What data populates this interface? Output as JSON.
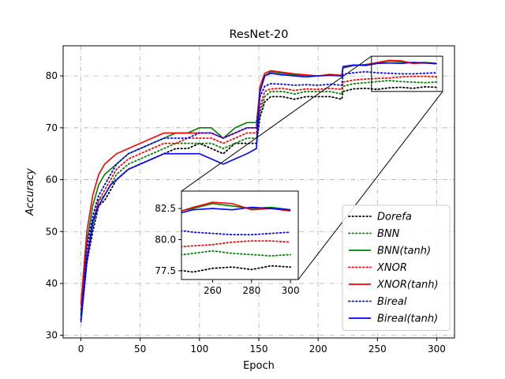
{
  "chart_data": {
    "type": "line",
    "title": "ResNet-20",
    "xlabel": "Epoch",
    "ylabel": "Accuracy",
    "xlim": [
      -15,
      315
    ],
    "ylim": [
      29.5,
      85.8
    ],
    "xticks": [
      0,
      50,
      100,
      150,
      200,
      250,
      300
    ],
    "yticks": [
      30,
      40,
      50,
      60,
      70,
      80
    ],
    "grid": true,
    "legend_position": "bottom-right",
    "series": [
      {
        "name": "Dorefa",
        "color": "#000000",
        "style": "dotted",
        "x": [
          0,
          5,
          10,
          15,
          20,
          25,
          30,
          40,
          50,
          60,
          70,
          80,
          90,
          100,
          110,
          120,
          130,
          140,
          148,
          151,
          155,
          160,
          170,
          180,
          190,
          200,
          210,
          220,
          221,
          230,
          240,
          250,
          260,
          270,
          280,
          290,
          300
        ],
        "y": [
          33,
          44,
          50,
          55,
          56,
          58,
          60,
          62,
          63,
          64,
          65,
          66,
          66,
          67,
          66,
          65,
          67,
          67,
          67,
          72,
          75,
          76,
          76,
          75.5,
          76,
          76,
          76,
          75.5,
          77,
          77.5,
          77.6,
          77.4,
          77.7,
          77.8,
          77.6,
          77.9,
          77.8
        ]
      },
      {
        "name": "BNN",
        "color": "#008000",
        "style": "dotted",
        "x": [
          0,
          5,
          10,
          15,
          20,
          25,
          30,
          40,
          50,
          60,
          70,
          80,
          90,
          100,
          110,
          120,
          130,
          140,
          148,
          151,
          155,
          160,
          170,
          180,
          190,
          200,
          210,
          220,
          221,
          230,
          240,
          250,
          260,
          270,
          280,
          290,
          300
        ],
        "y": [
          34,
          45,
          51,
          56,
          57,
          59,
          61,
          63,
          64,
          65,
          66,
          67,
          67,
          67,
          67,
          66,
          67,
          68,
          68,
          73,
          76,
          77,
          77,
          76.5,
          77,
          77,
          77,
          76.5,
          78,
          78.5,
          78.7,
          78.9,
          79.1,
          78.9,
          78.8,
          78.7,
          78.8
        ]
      },
      {
        "name": "BNN(tanh)",
        "color": "#008000",
        "style": "solid",
        "x": [
          0,
          5,
          10,
          15,
          20,
          25,
          30,
          40,
          50,
          60,
          70,
          80,
          90,
          100,
          110,
          120,
          130,
          140,
          148,
          151,
          155,
          160,
          170,
          180,
          190,
          200,
          210,
          220,
          221,
          230,
          240,
          250,
          260,
          270,
          280,
          290,
          300
        ],
        "y": [
          34,
          48,
          55,
          59,
          61,
          62,
          63,
          65,
          66,
          67,
          68,
          69,
          69,
          70,
          70,
          68,
          70,
          71,
          71,
          77,
          80,
          80.8,
          80.5,
          80.2,
          80.1,
          80,
          80.2,
          80,
          81.5,
          82,
          82.2,
          82.5,
          82.9,
          82.7,
          82.5,
          82.6,
          82.4
        ]
      },
      {
        "name": "XNOR",
        "color": "#ff0000",
        "style": "dotted",
        "x": [
          0,
          5,
          10,
          15,
          20,
          25,
          30,
          40,
          50,
          60,
          70,
          80,
          90,
          100,
          110,
          120,
          130,
          140,
          148,
          151,
          155,
          160,
          170,
          180,
          190,
          200,
          210,
          220,
          221,
          230,
          240,
          250,
          260,
          270,
          280,
          290,
          300
        ],
        "y": [
          35,
          46,
          52,
          56,
          58,
          60,
          62,
          64,
          65,
          66,
          67,
          67,
          68,
          68,
          68,
          67,
          68,
          69,
          69,
          74,
          77,
          77.5,
          77.6,
          77.2,
          77.5,
          77.4,
          77.6,
          77.4,
          78.8,
          79.2,
          79.4,
          79.5,
          79.6,
          79.8,
          79.9,
          79.9,
          79.8
        ]
      },
      {
        "name": "XNOR(tanh)",
        "color": "#ff0000",
        "style": "solid",
        "x": [
          0,
          5,
          10,
          15,
          20,
          25,
          30,
          40,
          50,
          60,
          70,
          80,
          90,
          100,
          110,
          120,
          130,
          140,
          148,
          151,
          155,
          160,
          170,
          180,
          190,
          200,
          210,
          220,
          221,
          230,
          240,
          250,
          260,
          270,
          280,
          290,
          300
        ],
        "y": [
          36,
          50,
          57,
          61,
          63,
          64,
          65,
          66,
          67,
          68,
          69,
          69,
          69,
          69,
          69,
          68,
          69,
          70,
          70,
          78,
          80.5,
          81,
          80.7,
          80.4,
          80.2,
          80,
          80.3,
          80.1,
          81.8,
          82,
          82.1,
          82.6,
          83,
          82.9,
          82.4,
          82.5,
          82.3
        ]
      },
      {
        "name": "Bireal",
        "color": "#0000ff",
        "style": "dotted",
        "x": [
          0,
          5,
          10,
          15,
          20,
          25,
          30,
          40,
          50,
          60,
          70,
          80,
          90,
          100,
          110,
          120,
          130,
          140,
          148,
          151,
          155,
          160,
          170,
          180,
          190,
          200,
          210,
          220,
          221,
          230,
          240,
          250,
          260,
          270,
          280,
          290,
          300
        ],
        "y": [
          33,
          47,
          53,
          57,
          59,
          61,
          63,
          65,
          66,
          67,
          68,
          68,
          68,
          69,
          69,
          68,
          69,
          70,
          70,
          76,
          78,
          78.5,
          78.4,
          78.2,
          78.3,
          78.2,
          78.4,
          78.2,
          80.3,
          80.6,
          80.8,
          80.6,
          80.5,
          80.4,
          80.4,
          80.5,
          80.6
        ]
      },
      {
        "name": "Bireal(tanh)",
        "color": "#0000ff",
        "style": "solid",
        "x": [
          0,
          5,
          10,
          15,
          20,
          25,
          30,
          40,
          50,
          60,
          70,
          80,
          90,
          100,
          110,
          120,
          130,
          140,
          148,
          151,
          155,
          160,
          170,
          180,
          190,
          200,
          210,
          220,
          221,
          230,
          240,
          250,
          260,
          270,
          280,
          290,
          300
        ],
        "y": [
          32.5,
          44,
          52,
          55,
          57,
          59,
          60,
          62,
          63,
          64,
          65,
          65,
          65,
          65,
          64,
          63,
          64,
          65,
          66,
          77,
          80,
          80.5,
          80.2,
          80,
          79.8,
          80,
          80.1,
          80,
          81.8,
          82.1,
          82,
          82.4,
          82.5,
          82.4,
          82.6,
          82.5,
          82.4
        ]
      }
    ],
    "inset": {
      "xlim": [
        244,
        304
      ],
      "ylim": [
        76.8,
        83.9
      ],
      "xticks": [
        260,
        280,
        300
      ],
      "yticks": [
        77.5,
        80.0,
        82.5
      ],
      "ytick_labels": [
        "77.5",
        "80.0",
        "82.5"
      ],
      "zoom_box_xlim": [
        245,
        305
      ],
      "zoom_box_ylim": [
        77,
        83.8
      ]
    }
  }
}
